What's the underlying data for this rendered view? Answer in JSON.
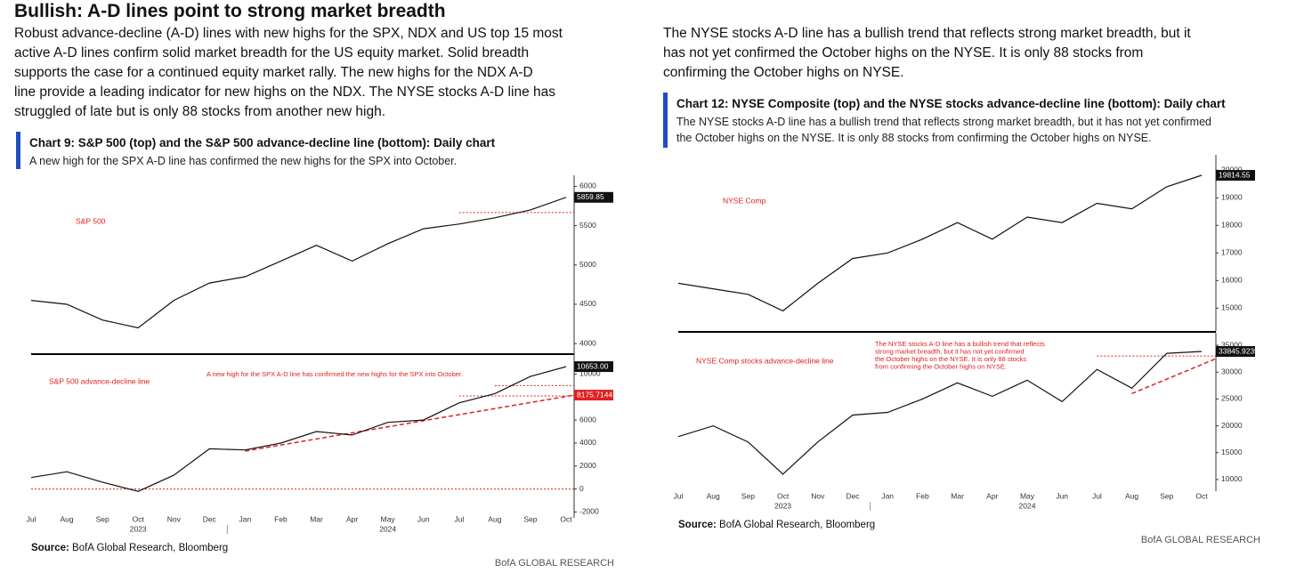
{
  "left_text": {
    "title": "Bullish: A-D lines point to strong market breadth",
    "lines": [
      "Robust advance-decline (A-D) lines with new highs for the SPX, NDX and US top 15 most",
      "active A-D lines confirm solid market breadth for the US equity market. Solid breadth",
      "supports the case for a continued equity market rally. The new highs for the NDX A-D",
      "line provide a leading indicator for new highs on the NDX. The NYSE stocks A-D line has",
      "struggled of late but is only 88 stocks from another new high."
    ]
  },
  "chart9": {
    "title": "Chart 9: S&P 500 (top) and the S&P 500 advance-decline line (bottom): Daily chart",
    "subtitle": "A new high for the SPX A-D line has confirmed the new highs for the SPX into October.",
    "years": [
      "2023",
      "2024"
    ],
    "source_label": "Source:",
    "source": "BofA Global Research, Bloomberg",
    "brand": "BofA GLOBAL RESEARCH"
  },
  "right_text": {
    "lines": [
      "The NYSE stocks A-D line has a bullish trend that reflects strong market breadth, but it",
      "has not yet confirmed the October highs on the NYSE. It is only 88 stocks from",
      "confirming the October highs on NYSE."
    ]
  },
  "chart12": {
    "title": "Chart 12: NYSE Composite (top) and the NYSE stocks advance-decline line (bottom): Daily chart",
    "subtitle": [
      "The NYSE stocks A-D line has a bullish trend that reflects strong market breadth, but it has not yet confirmed",
      "the October highs on the NYSE. It is only 88 stocks from confirming the October highs on NYSE."
    ],
    "years": [
      "2023",
      "2024"
    ],
    "source_label": "Source:",
    "source": "BofA Global Research, Bloomberg",
    "brand": "BofA GLOBAL RESEARCH"
  },
  "chart_data": [
    {
      "type": "line",
      "annotation": [
        "S&P 500"
      ],
      "color": "#111111",
      "values": [
        4550,
        4500,
        4300,
        4200,
        4550,
        4770,
        4850,
        5050,
        5250,
        5050,
        5270,
        5460,
        5520,
        5600,
        5700,
        5859.85
      ],
      "value_labels": [
        null,
        null,
        null,
        null,
        null,
        null,
        null,
        null,
        null,
        null,
        null,
        null,
        null,
        null,
        null,
        "5859.85"
      ],
      "ylim": [
        3900,
        6050
      ],
      "yticks": [
        4000,
        4500,
        5000,
        5500,
        6000
      ],
      "hlines": [
        {
          "from": 12,
          "value": 5667
        }
      ]
    },
    {
      "type": "line",
      "annotation": [
        "S&P 500 advance-decline line"
      ],
      "note": [
        "A new high for the SPX A-D line has confirmed the new highs for the SPX into October."
      ],
      "color": "#111111",
      "categories": [
        "Jul",
        "Aug",
        "Sep",
        "Oct",
        "Nov",
        "Dec",
        "Jan",
        "Feb",
        "Mar",
        "Apr",
        "May",
        "Jun",
        "Jul",
        "Aug",
        "Sep",
        "Oct"
      ],
      "values": [
        1000,
        1500,
        600,
        -200,
        1200,
        3500,
        3400,
        4000,
        5000,
        4700,
        5800,
        6000,
        7500,
        8300,
        9800,
        10653
      ],
      "value_labels": [
        null,
        null,
        null,
        null,
        null,
        null,
        null,
        null,
        null,
        null,
        null,
        null,
        null,
        null,
        null,
        "10653.00"
      ],
      "ylim": [
        -2200,
        11200
      ],
      "yticks": [
        -2000,
        0,
        2000,
        4000,
        6000,
        8000,
        10000
      ],
      "hlines": [
        {
          "from": 0,
          "value": 0
        },
        {
          "from": 13,
          "value": 9000
        },
        {
          "from": 12,
          "value": 8100
        }
      ],
      "trend": {
        "x": [
          6,
          15
        ],
        "y": [
          3300,
          8175.7144
        ],
        "label": "8175.7144"
      }
    },
    {
      "type": "line",
      "annotation": [
        "NYSE Comp"
      ],
      "color": "#111111",
      "values": [
        15900,
        15700,
        15500,
        14900,
        15900,
        16800,
        17000,
        17500,
        18100,
        17500,
        18300,
        18100,
        18800,
        18600,
        19400,
        19814.55
      ],
      "value_labels": [
        null,
        null,
        null,
        null,
        null,
        null,
        null,
        null,
        null,
        null,
        null,
        null,
        null,
        null,
        null,
        "19814.55"
      ],
      "ylim": [
        14300,
        20300
      ],
      "yticks": [
        15000,
        16000,
        17000,
        18000,
        19000,
        20000
      ]
    },
    {
      "type": "line",
      "annotation": [
        "NYSE Comp stocks advance-decline line"
      ],
      "note": [
        "The NYSE stocks A-D line has a bullish trend that reflects",
        "strong market breadth, but it has not yet confirmed",
        "the October highs on the NYSE. It is only 88 stocks",
        "from confirming the October highs on NYSE."
      ],
      "color": "#111111",
      "categories": [
        "Jul",
        "Aug",
        "Sep",
        "Oct",
        "Nov",
        "Dec",
        "Jan",
        "Feb",
        "Mar",
        "Apr",
        "May",
        "Jun",
        "Jul",
        "Aug",
        "Sep",
        "Oct"
      ],
      "values": [
        18000,
        20000,
        17000,
        11000,
        17000,
        22000,
        22500,
        25000,
        28000,
        25500,
        28500,
        24500,
        30500,
        27000,
        33500,
        33845.9239
      ],
      "value_labels": [
        null,
        null,
        null,
        null,
        null,
        null,
        null,
        null,
        null,
        null,
        null,
        null,
        null,
        null,
        null,
        "33845.9239"
      ],
      "ylim": [
        8500,
        36000
      ],
      "yticks": [
        10000,
        15000,
        20000,
        25000,
        30000,
        35000
      ],
      "hlines": [
        {
          "from": 12,
          "value": 33000
        }
      ],
      "trend": {
        "x": [
          13,
          15
        ],
        "y": [
          26000,
          32500
        ]
      }
    }
  ]
}
